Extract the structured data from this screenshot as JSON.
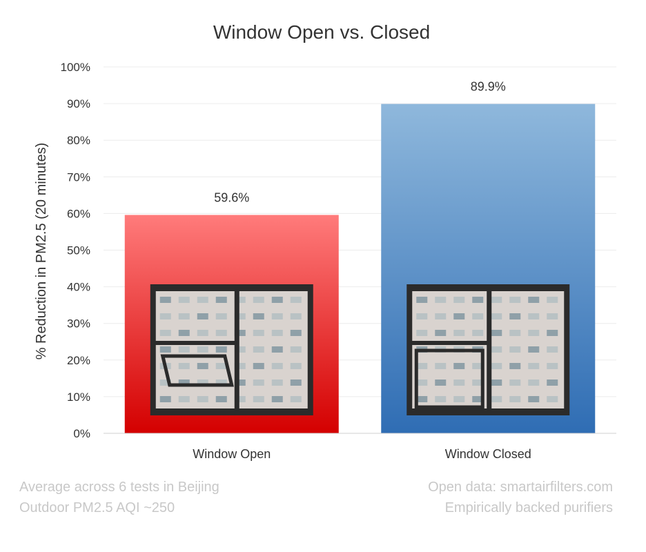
{
  "chart_data": {
    "type": "bar",
    "title": "Window Open vs. Closed",
    "ylabel": "% Reduction in PM2.5 (20 minutes)",
    "xlabel": "",
    "ylim": [
      0,
      100
    ],
    "yticks": [
      "0%",
      "10%",
      "20%",
      "30%",
      "40%",
      "50%",
      "60%",
      "70%",
      "80%",
      "90%",
      "100%"
    ],
    "categories": [
      "Window Open",
      "Window Closed"
    ],
    "values": [
      59.6,
      89.9
    ],
    "data_labels": [
      "59.6%",
      "89.9%"
    ],
    "colors": [
      "#e0231f",
      "#3f7fbf"
    ],
    "grid": true
  },
  "footnotes": {
    "left": [
      "Average across 6 tests in Beijing",
      "Outdoor PM2.5 AQI ~250"
    ],
    "right": [
      "Open data: smartairfilters.com",
      "Empirically backed purifiers"
    ]
  },
  "images": {
    "window_open": "photo of an open window",
    "window_closed": "photo of a closed window"
  }
}
